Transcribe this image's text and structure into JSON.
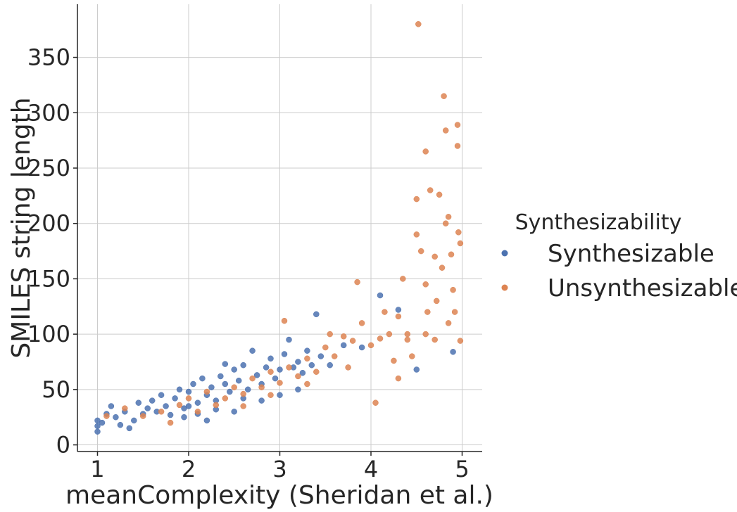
{
  "chart_data": {
    "type": "scatter",
    "xlabel": "meanComplexity (Sheridan et al.)",
    "ylabel": "SMILES string length",
    "xlim": [
      0.78,
      5.22
    ],
    "ylim": [
      -6,
      398
    ],
    "xticks": [
      1,
      2,
      3,
      4,
      5
    ],
    "yticks": [
      0,
      50,
      100,
      150,
      200,
      250,
      300,
      350
    ],
    "grid": true,
    "legend": {
      "title": "Synthesizability",
      "placement": "right"
    },
    "series": [
      {
        "name": "Synthesizable",
        "color": "#4c72b0",
        "points": [
          [
            1.0,
            12
          ],
          [
            1.0,
            17
          ],
          [
            1.0,
            22
          ],
          [
            1.05,
            20
          ],
          [
            1.1,
            28
          ],
          [
            1.15,
            35
          ],
          [
            1.2,
            25
          ],
          [
            1.25,
            18
          ],
          [
            1.3,
            30
          ],
          [
            1.35,
            15
          ],
          [
            1.4,
            22
          ],
          [
            1.45,
            38
          ],
          [
            1.5,
            28
          ],
          [
            1.55,
            33
          ],
          [
            1.6,
            40
          ],
          [
            1.65,
            30
          ],
          [
            1.7,
            45
          ],
          [
            1.75,
            35
          ],
          [
            1.8,
            27
          ],
          [
            1.85,
            42
          ],
          [
            1.9,
            50
          ],
          [
            1.95,
            33
          ],
          [
            2.0,
            48
          ],
          [
            2.05,
            55
          ],
          [
            2.1,
            38
          ],
          [
            2.15,
            60
          ],
          [
            2.2,
            45
          ],
          [
            2.25,
            52
          ],
          [
            2.3,
            40
          ],
          [
            2.35,
            62
          ],
          [
            2.4,
            55
          ],
          [
            2.45,
            48
          ],
          [
            2.5,
            68
          ],
          [
            2.55,
            58
          ],
          [
            2.6,
            72
          ],
          [
            2.65,
            50
          ],
          [
            2.7,
            85
          ],
          [
            2.75,
            63
          ],
          [
            2.8,
            55
          ],
          [
            2.85,
            70
          ],
          [
            2.9,
            78
          ],
          [
            2.95,
            60
          ],
          [
            3.0,
            68
          ],
          [
            3.05,
            82
          ],
          [
            3.1,
            95
          ],
          [
            3.15,
            70
          ],
          [
            3.2,
            75
          ],
          [
            3.25,
            65
          ],
          [
            3.3,
            85
          ],
          [
            3.35,
            72
          ],
          [
            3.4,
            118
          ],
          [
            3.45,
            80
          ],
          [
            3.55,
            72
          ],
          [
            3.7,
            90
          ],
          [
            3.9,
            88
          ],
          [
            4.1,
            135
          ],
          [
            4.3,
            122
          ],
          [
            4.5,
            68
          ],
          [
            4.9,
            84
          ],
          [
            2.0,
            35
          ],
          [
            2.1,
            28
          ],
          [
            2.3,
            32
          ],
          [
            2.5,
            30
          ],
          [
            2.6,
            42
          ],
          [
            1.95,
            25
          ],
          [
            2.2,
            22
          ],
          [
            2.4,
            73
          ],
          [
            2.8,
            40
          ],
          [
            3.0,
            45
          ],
          [
            3.2,
            50
          ]
        ]
      },
      {
        "name": "Unsynthesizable",
        "color": "#dd8452",
        "points": [
          [
            1.1,
            26
          ],
          [
            1.3,
            33
          ],
          [
            1.5,
            26
          ],
          [
            1.7,
            30
          ],
          [
            1.8,
            20
          ],
          [
            1.9,
            36
          ],
          [
            2.0,
            42
          ],
          [
            2.1,
            30
          ],
          [
            2.2,
            48
          ],
          [
            2.3,
            36
          ],
          [
            2.4,
            42
          ],
          [
            2.5,
            52
          ],
          [
            2.6,
            46
          ],
          [
            2.7,
            60
          ],
          [
            2.8,
            52
          ],
          [
            2.9,
            66
          ],
          [
            3.0,
            56
          ],
          [
            3.05,
            112
          ],
          [
            3.1,
            70
          ],
          [
            3.2,
            62
          ],
          [
            3.3,
            78
          ],
          [
            3.4,
            66
          ],
          [
            3.5,
            88
          ],
          [
            3.55,
            100
          ],
          [
            3.6,
            80
          ],
          [
            3.7,
            98
          ],
          [
            3.75,
            70
          ],
          [
            3.8,
            94
          ],
          [
            3.85,
            147
          ],
          [
            3.9,
            110
          ],
          [
            4.0,
            90
          ],
          [
            4.05,
            38
          ],
          [
            4.1,
            96
          ],
          [
            4.15,
            120
          ],
          [
            4.2,
            100
          ],
          [
            4.25,
            76
          ],
          [
            4.3,
            116
          ],
          [
            4.35,
            150
          ],
          [
            4.4,
            100
          ],
          [
            4.45,
            80
          ],
          [
            4.5,
            222
          ],
          [
            4.5,
            190
          ],
          [
            4.55,
            175
          ],
          [
            4.6,
            265
          ],
          [
            4.6,
            145
          ],
          [
            4.62,
            120
          ],
          [
            4.65,
            230
          ],
          [
            4.7,
            170
          ],
          [
            4.72,
            130
          ],
          [
            4.75,
            226
          ],
          [
            4.78,
            160
          ],
          [
            4.8,
            315
          ],
          [
            4.82,
            200
          ],
          [
            4.82,
            284
          ],
          [
            4.85,
            206
          ],
          [
            4.88,
            172
          ],
          [
            4.9,
            140
          ],
          [
            4.92,
            120
          ],
          [
            4.95,
            270
          ],
          [
            4.95,
            289
          ],
          [
            4.96,
            192
          ],
          [
            4.98,
            182
          ],
          [
            4.98,
            94
          ],
          [
            4.52,
            380
          ],
          [
            4.85,
            110
          ],
          [
            4.7,
            95
          ],
          [
            4.6,
            100
          ],
          [
            4.4,
            95
          ],
          [
            4.3,
            60
          ],
          [
            2.6,
            35
          ],
          [
            2.9,
            45
          ],
          [
            3.3,
            55
          ]
        ]
      }
    ]
  }
}
